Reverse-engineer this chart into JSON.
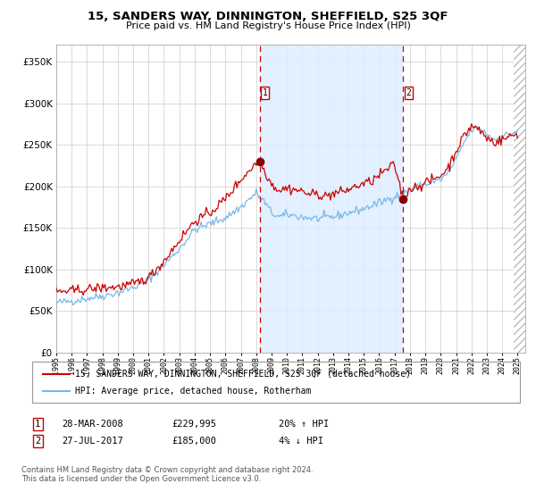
{
  "title": "15, SANDERS WAY, DINNINGTON, SHEFFIELD, S25 3QF",
  "subtitle": "Price paid vs. HM Land Registry's House Price Index (HPI)",
  "legend_line1": "15, SANDERS WAY, DINNINGTON, SHEFFIELD, S25 3QF (detached house)",
  "legend_line2": "HPI: Average price, detached house, Rotherham",
  "annotation1_label": "1",
  "annotation1_date": "28-MAR-2008",
  "annotation1_price": "£229,995",
  "annotation1_hpi": "20% ↑ HPI",
  "annotation2_label": "2",
  "annotation2_date": "27-JUL-2017",
  "annotation2_price": "£185,000",
  "annotation2_hpi": "4% ↓ HPI",
  "footer": "Contains HM Land Registry data © Crown copyright and database right 2024.\nThis data is licensed under the Open Government Licence v3.0.",
  "red_line_color": "#cc0000",
  "blue_line_color": "#7ab8e8",
  "dot_color": "#880000",
  "vline_color": "#cc0000",
  "shading_color": "#ddeeff",
  "ylim": [
    0,
    370000
  ],
  "yticks": [
    0,
    50000,
    100000,
    150000,
    200000,
    250000,
    300000,
    350000
  ],
  "year_start": 1995,
  "year_end": 2025,
  "purchase1_year": 2008.23,
  "purchase1_value": 229995,
  "purchase2_year": 2017.56,
  "purchase2_value": 185000
}
